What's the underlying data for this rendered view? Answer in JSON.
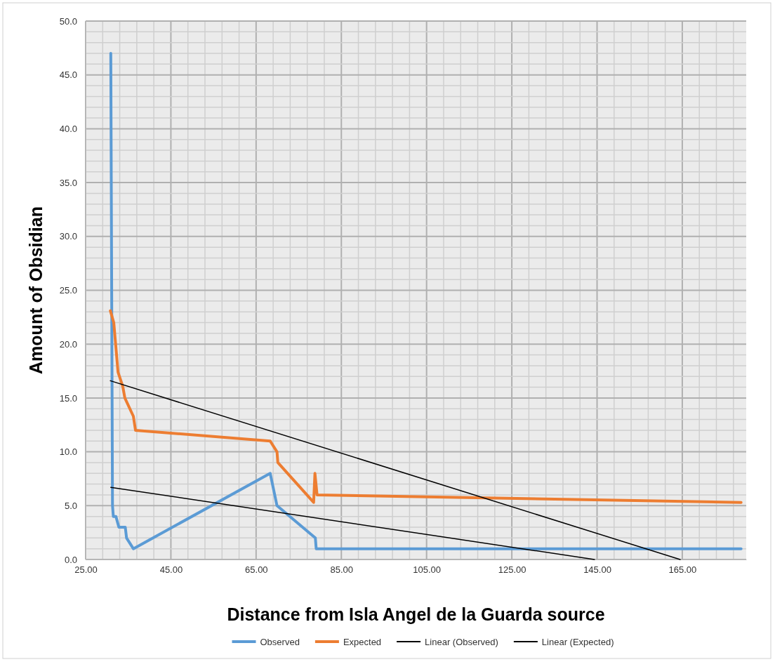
{
  "chart_data": {
    "type": "line",
    "xlabel": "Distance from Isla Angel de la Guarda source",
    "ylabel": "Amount of Obsidian",
    "xlim": [
      25,
      180
    ],
    "ylim": [
      0,
      50
    ],
    "xticks": [
      {
        "value": 25,
        "label": "25.00"
      },
      {
        "value": 29,
        "label": null
      },
      {
        "value": 33,
        "label": null
      },
      {
        "value": 37,
        "label": null
      },
      {
        "value": 41,
        "label": null
      },
      {
        "value": 45,
        "label": "45.00"
      },
      {
        "value": 49,
        "label": null
      },
      {
        "value": 53,
        "label": null
      },
      {
        "value": 57,
        "label": null
      },
      {
        "value": 61,
        "label": null
      },
      {
        "value": 65,
        "label": "65.00"
      },
      {
        "value": 69,
        "label": null
      },
      {
        "value": 73,
        "label": null
      },
      {
        "value": 77,
        "label": null
      },
      {
        "value": 81,
        "label": null
      },
      {
        "value": 85,
        "label": "85.00"
      },
      {
        "value": 89,
        "label": null
      },
      {
        "value": 93,
        "label": null
      },
      {
        "value": 97,
        "label": null
      },
      {
        "value": 101,
        "label": null
      },
      {
        "value": 105,
        "label": "105.00"
      },
      {
        "value": 109,
        "label": null
      },
      {
        "value": 113,
        "label": null
      },
      {
        "value": 117,
        "label": null
      },
      {
        "value": 121,
        "label": null
      },
      {
        "value": 125,
        "label": "125.00"
      },
      {
        "value": 129,
        "label": null
      },
      {
        "value": 133,
        "label": null
      },
      {
        "value": 137,
        "label": null
      },
      {
        "value": 141,
        "label": null
      },
      {
        "value": 145,
        "label": "145.00"
      },
      {
        "value": 149,
        "label": null
      },
      {
        "value": 153,
        "label": null
      },
      {
        "value": 157,
        "label": null
      },
      {
        "value": 161,
        "label": null
      },
      {
        "value": 165,
        "label": "165.00"
      },
      {
        "value": 169,
        "label": null
      },
      {
        "value": 173,
        "label": null
      },
      {
        "value": 177,
        "label": null
      }
    ],
    "yticks": [
      {
        "value": 0,
        "label": "0.0"
      },
      {
        "value": 1,
        "label": null
      },
      {
        "value": 2,
        "label": null
      },
      {
        "value": 3,
        "label": null
      },
      {
        "value": 4,
        "label": null
      },
      {
        "value": 5,
        "label": "5.0"
      },
      {
        "value": 6,
        "label": null
      },
      {
        "value": 7,
        "label": null
      },
      {
        "value": 8,
        "label": null
      },
      {
        "value": 9,
        "label": null
      },
      {
        "value": 10,
        "label": "10.0"
      },
      {
        "value": 11,
        "label": null
      },
      {
        "value": 12,
        "label": null
      },
      {
        "value": 13,
        "label": null
      },
      {
        "value": 14,
        "label": null
      },
      {
        "value": 15,
        "label": "15.0"
      },
      {
        "value": 16,
        "label": null
      },
      {
        "value": 17,
        "label": null
      },
      {
        "value": 18,
        "label": null
      },
      {
        "value": 19,
        "label": null
      },
      {
        "value": 20,
        "label": "20.0"
      },
      {
        "value": 21,
        "label": null
      },
      {
        "value": 22,
        "label": null
      },
      {
        "value": 23,
        "label": null
      },
      {
        "value": 24,
        "label": null
      },
      {
        "value": 25,
        "label": "25.0"
      },
      {
        "value": 26,
        "label": null
      },
      {
        "value": 27,
        "label": null
      },
      {
        "value": 28,
        "label": null
      },
      {
        "value": 29,
        "label": null
      },
      {
        "value": 30,
        "label": "30.0"
      },
      {
        "value": 31,
        "label": null
      },
      {
        "value": 32,
        "label": null
      },
      {
        "value": 33,
        "label": null
      },
      {
        "value": 34,
        "label": null
      },
      {
        "value": 35,
        "label": "35.0"
      },
      {
        "value": 36,
        "label": null
      },
      {
        "value": 37,
        "label": null
      },
      {
        "value": 38,
        "label": null
      },
      {
        "value": 39,
        "label": null
      },
      {
        "value": 40,
        "label": "40.0"
      },
      {
        "value": 41,
        "label": null
      },
      {
        "value": 42,
        "label": null
      },
      {
        "value": 43,
        "label": null
      },
      {
        "value": 44,
        "label": null
      },
      {
        "value": 45,
        "label": "45.0"
      },
      {
        "value": 46,
        "label": null
      },
      {
        "value": 47,
        "label": null
      },
      {
        "value": 48,
        "label": null
      },
      {
        "value": 49,
        "label": null
      },
      {
        "value": 50,
        "label": "50.0"
      }
    ],
    "grid": true,
    "legend": "bottom",
    "series": [
      {
        "name": "Observed",
        "color": "#5b9bd5",
        "x": [
          30.9,
          31.3,
          31.5,
          32.1,
          32.8,
          34.3,
          34.6,
          36.2,
          68.3,
          69.9,
          78.9,
          79.1,
          178.8
        ],
        "values": [
          47,
          5,
          4,
          4,
          3,
          3,
          2,
          1,
          8,
          5,
          2,
          1,
          1
        ]
      },
      {
        "name": "Expected",
        "color": "#ed7d31",
        "x": [
          30.8,
          31.6,
          32.6,
          33.7,
          34.2,
          36.2,
          36.7,
          68.3,
          69.9,
          70.1,
          78.5,
          78.8,
          79.3,
          178.8
        ],
        "values": [
          23.1,
          22,
          17.4,
          16.1,
          15,
          13.3,
          12,
          11,
          10,
          9,
          5.3,
          8,
          6,
          5.3
        ]
      },
      {
        "name": "Linear (Observed)",
        "color": "#000000",
        "x": [
          30.9,
          144.4
        ],
        "values": [
          6.7,
          0
        ]
      },
      {
        "name": "Linear (Expected)",
        "color": "#000000",
        "x": [
          30.8,
          164.5
        ],
        "values": [
          16.6,
          0
        ]
      }
    ]
  }
}
